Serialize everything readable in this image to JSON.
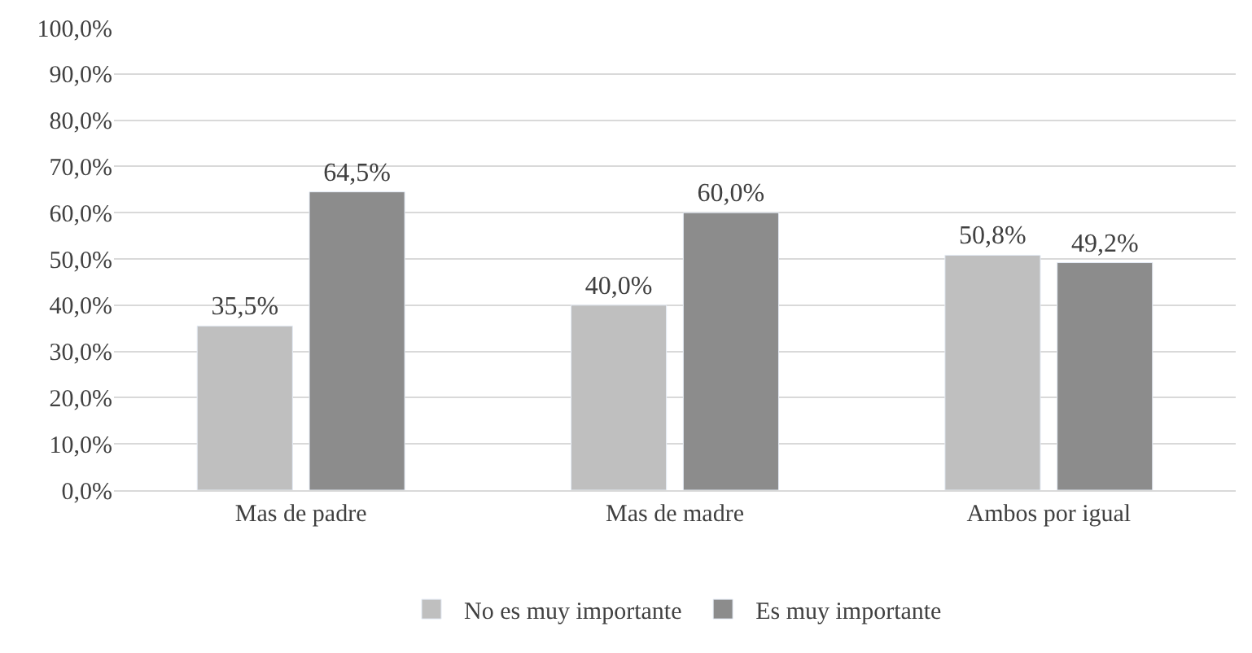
{
  "chart_data": {
    "type": "bar",
    "categories": [
      "Mas de padre",
      "Mas de madre",
      "Ambos por igual"
    ],
    "series": [
      {
        "name": "No es muy importante",
        "color": "#bfbfbf",
        "values": [
          35.5,
          40.0,
          50.8
        ],
        "value_labels": [
          "35,5%",
          "40,0%",
          "50,8%"
        ]
      },
      {
        "name": "Es muy importante",
        "color": "#8c8c8c",
        "values": [
          64.5,
          60.0,
          49.2
        ],
        "value_labels": [
          "64,5%",
          "60,0%",
          "49,2%"
        ]
      }
    ],
    "ylim": [
      0,
      100
    ],
    "yticks": [
      {
        "value": 0,
        "label": "0,0%"
      },
      {
        "value": 10,
        "label": "10,0%"
      },
      {
        "value": 20,
        "label": "20,0%"
      },
      {
        "value": 30,
        "label": "30,0%"
      },
      {
        "value": 40,
        "label": "40,0%"
      },
      {
        "value": 50,
        "label": "50,0%"
      },
      {
        "value": 60,
        "label": "60,0%"
      },
      {
        "value": 70,
        "label": "70,0%"
      },
      {
        "value": 80,
        "label": "80,0%"
      },
      {
        "value": 90,
        "label": "90,0%"
      },
      {
        "value": 100,
        "label": "100,0%"
      }
    ],
    "grid": "y",
    "legend": "bottom"
  }
}
